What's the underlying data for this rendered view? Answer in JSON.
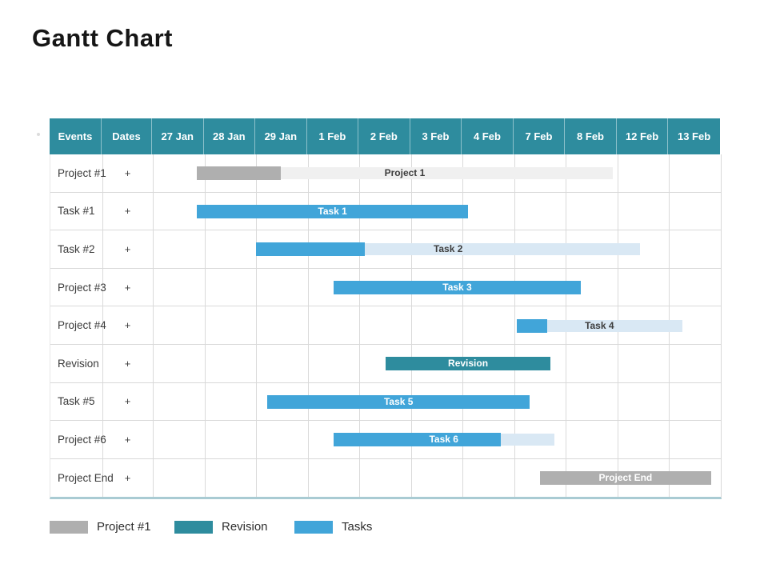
{
  "page": {
    "title": "Gantt Chart"
  },
  "palette": {
    "teal": "#2E8C9E",
    "blue": "#41A5D9",
    "light_blue": "#D9E8F4",
    "gray": "#AFAFAF",
    "light_gray": "#F0F0F0",
    "grid_line": "#DADADA",
    "table_bottom_border": "#A9CBD3",
    "header_text": "#FFFFFF",
    "dark_label": "#3D3D3D",
    "title_text": "#161616"
  },
  "chart_data": {
    "type": "bar",
    "subtype": "gantt",
    "title": "Gantt Chart",
    "columns": [
      "Events",
      "Dates",
      "27 Jan",
      "28 Jan",
      "29 Jan",
      "1 Feb",
      "2 Feb",
      "3 Feb",
      "4 Feb",
      "7 Feb",
      "8 Feb",
      "12 Feb",
      "13 Feb"
    ],
    "axis_note": "bar start/end are measured in date-column units; 0 = left edge of the 27 Jan column, 11 = right edge of the 13 Feb column",
    "grid": true,
    "legend_position": "bottom",
    "rows": [
      {
        "event": "Project #1",
        "dates": "+",
        "segments": [
          {
            "kind": "solid",
            "color": "gray",
            "start": 0.85,
            "end": 2.48
          },
          {
            "kind": "light",
            "color": "light_gray",
            "start": 2.48,
            "end": 8.91
          }
        ],
        "bar_label": {
          "text": "Project 1",
          "style": "dark"
        }
      },
      {
        "event": "Task #1",
        "dates": "+",
        "segments": [
          {
            "kind": "solid",
            "color": "blue",
            "start": 0.85,
            "end": 6.11
          }
        ],
        "bar_label": {
          "text": "Task 1",
          "style": "white"
        }
      },
      {
        "event": "Task #2",
        "dates": "+",
        "segments": [
          {
            "kind": "solid",
            "color": "blue",
            "start": 2.0,
            "end": 4.11
          },
          {
            "kind": "light",
            "color": "light_blue",
            "start": 4.11,
            "end": 9.44
          }
        ],
        "bar_label": {
          "text": "Task 2",
          "style": "dark"
        }
      },
      {
        "event": "Project #3",
        "dates": "+",
        "segments": [
          {
            "kind": "solid",
            "color": "blue",
            "start": 3.5,
            "end": 8.29
          }
        ],
        "bar_label": {
          "text": "Task 3",
          "style": "white"
        }
      },
      {
        "event": "Project #4",
        "dates": "+",
        "segments": [
          {
            "kind": "solid",
            "color": "blue",
            "start": 7.05,
            "end": 7.64
          },
          {
            "kind": "light",
            "color": "light_blue",
            "start": 7.64,
            "end": 10.25
          }
        ],
        "bar_label": {
          "text": "Task 4",
          "style": "dark"
        }
      },
      {
        "event": "Revision",
        "dates": "+",
        "segments": [
          {
            "kind": "solid",
            "color": "teal",
            "start": 4.51,
            "end": 7.7
          }
        ],
        "bar_label": {
          "text": "Revision",
          "style": "white"
        }
      },
      {
        "event": "Task #5",
        "dates": "+",
        "segments": [
          {
            "kind": "solid",
            "color": "blue",
            "start": 2.22,
            "end": 7.3
          }
        ],
        "bar_label": {
          "text": "Task 5",
          "style": "white"
        }
      },
      {
        "event": "Project #6",
        "dates": "+",
        "segments": [
          {
            "kind": "solid",
            "color": "blue",
            "start": 3.5,
            "end": 6.74
          },
          {
            "kind": "light",
            "color": "light_blue",
            "start": 6.74,
            "end": 7.77
          }
        ],
        "bar_label": {
          "text": "Task 6",
          "style": "white"
        }
      },
      {
        "event": "Project End",
        "dates": "+",
        "segments": [
          {
            "kind": "solid",
            "color": "gray",
            "start": 7.5,
            "end": 10.81
          }
        ],
        "bar_label": {
          "text": "Project End",
          "style": "white"
        }
      }
    ],
    "legend": [
      {
        "color": "gray",
        "label": "Project #1"
      },
      {
        "color": "teal",
        "label": "Revision"
      },
      {
        "color": "blue",
        "label": "Tasks"
      }
    ]
  }
}
